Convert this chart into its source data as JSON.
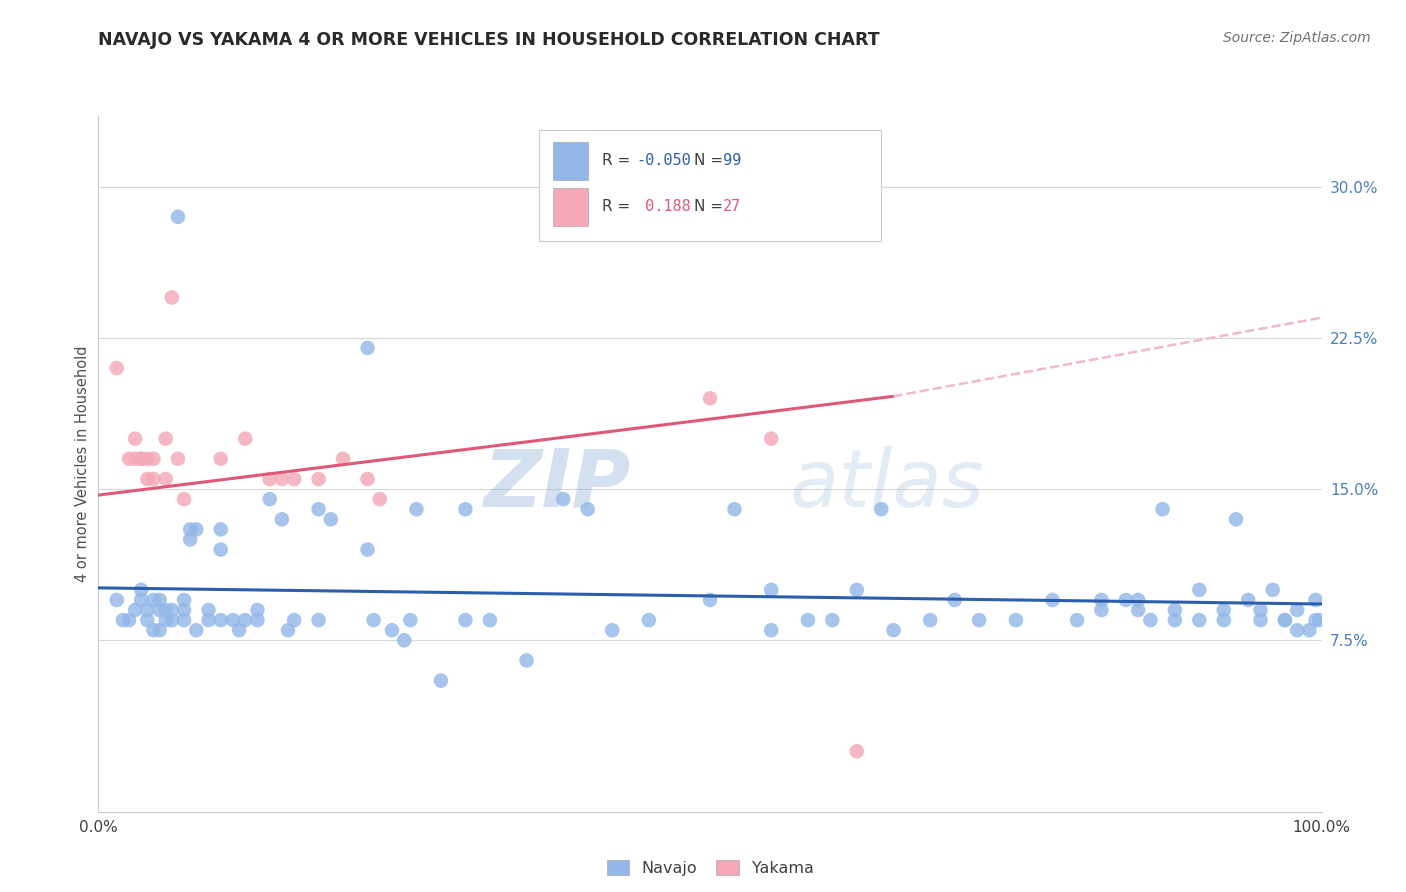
{
  "title": "NAVAJO VS YAKAMA 4 OR MORE VEHICLES IN HOUSEHOLD CORRELATION CHART",
  "source": "Source: ZipAtlas.com",
  "ylabel": "4 or more Vehicles in Household",
  "legend_navajo": "Navajo",
  "legend_yakama": "Yakama",
  "navajo_r": "-0.050",
  "navajo_n": "99",
  "yakama_r": "0.188",
  "yakama_n": "27",
  "navajo_color": "#93b8e8",
  "yakama_color": "#f4a8b8",
  "navajo_line_color": "#2b5fad",
  "yakama_line_color": "#e05878",
  "trend_dashed_color": "#f0b8c8",
  "watermark_zip": "ZIP",
  "watermark_atlas": "atlas",
  "background_color": "#ffffff",
  "grid_color": "#d8d8d8",
  "right_axis_color": "#4a7fc0",
  "title_color": "#2a2a2a",
  "source_color": "#707070",
  "ytick_labels": [
    "7.5%",
    "15.0%",
    "22.5%",
    "30.0%"
  ],
  "ytick_values": [
    7.5,
    15.0,
    22.5,
    30.0
  ],
  "xlim": [
    0.0,
    100.0
  ],
  "ylim": [
    -1.0,
    33.5
  ],
  "navajo_x": [
    1.5,
    2.0,
    2.5,
    3.0,
    3.5,
    3.5,
    4.0,
    4.0,
    4.5,
    4.5,
    5.0,
    5.0,
    5.0,
    5.5,
    5.5,
    6.0,
    6.0,
    6.5,
    7.0,
    7.0,
    7.0,
    7.5,
    7.5,
    8.0,
    8.0,
    9.0,
    9.0,
    10.0,
    10.0,
    10.0,
    11.0,
    11.5,
    12.0,
    13.0,
    13.0,
    14.0,
    15.0,
    15.5,
    16.0,
    18.0,
    18.0,
    19.0,
    22.0,
    22.0,
    22.5,
    24.0,
    25.0,
    25.5,
    26.0,
    28.0,
    30.0,
    30.0,
    32.0,
    35.0,
    38.0,
    40.0,
    42.0,
    45.0,
    50.0,
    52.0,
    55.0,
    55.0,
    58.0,
    60.0,
    62.0,
    64.0,
    65.0,
    68.0,
    70.0,
    72.0,
    75.0,
    78.0,
    80.0,
    82.0,
    82.0,
    84.0,
    85.0,
    85.0,
    86.0,
    87.0,
    88.0,
    88.0,
    90.0,
    90.0,
    92.0,
    92.0,
    93.0,
    94.0,
    95.0,
    95.0,
    96.0,
    97.0,
    97.0,
    98.0,
    98.0,
    99.0,
    99.5,
    99.5,
    99.8
  ],
  "navajo_y": [
    9.5,
    8.5,
    8.5,
    9.0,
    9.5,
    10.0,
    8.5,
    9.0,
    9.5,
    8.0,
    8.0,
    9.0,
    9.5,
    9.0,
    8.5,
    8.5,
    9.0,
    28.5,
    8.5,
    9.0,
    9.5,
    12.5,
    13.0,
    13.0,
    8.0,
    8.5,
    9.0,
    12.0,
    13.0,
    8.5,
    8.5,
    8.0,
    8.5,
    9.0,
    8.5,
    14.5,
    13.5,
    8.0,
    8.5,
    14.0,
    8.5,
    13.5,
    22.0,
    12.0,
    8.5,
    8.0,
    7.5,
    8.5,
    14.0,
    5.5,
    14.0,
    8.5,
    8.5,
    6.5,
    14.5,
    14.0,
    8.0,
    8.5,
    9.5,
    14.0,
    8.0,
    10.0,
    8.5,
    8.5,
    10.0,
    14.0,
    8.0,
    8.5,
    9.5,
    8.5,
    8.5,
    9.5,
    8.5,
    9.0,
    9.5,
    9.5,
    9.0,
    9.5,
    8.5,
    14.0,
    9.0,
    8.5,
    10.0,
    8.5,
    9.0,
    8.5,
    13.5,
    9.5,
    9.0,
    8.5,
    10.0,
    8.5,
    8.5,
    9.0,
    8.0,
    8.0,
    9.5,
    8.5,
    8.5
  ],
  "yakama_x": [
    1.5,
    2.5,
    3.0,
    3.0,
    3.5,
    3.5,
    4.0,
    4.0,
    4.5,
    4.5,
    5.5,
    5.5,
    6.0,
    6.5,
    7.0,
    10.0,
    12.0,
    14.0,
    15.0,
    16.0,
    18.0,
    20.0,
    22.0,
    23.0,
    50.0,
    55.0,
    62.0
  ],
  "yakama_y": [
    21.0,
    16.5,
    16.5,
    17.5,
    16.5,
    16.5,
    15.5,
    16.5,
    15.5,
    16.5,
    15.5,
    17.5,
    24.5,
    16.5,
    14.5,
    16.5,
    17.5,
    15.5,
    15.5,
    15.5,
    15.5,
    16.5,
    15.5,
    14.5,
    19.5,
    17.5,
    2.0
  ],
  "navajo_trend_x0": 0.0,
  "navajo_trend_y0": 10.1,
  "navajo_trend_x1": 100.0,
  "navajo_trend_y1": 9.3,
  "yakama_trend_x0": 0.0,
  "yakama_trend_y0": 14.7,
  "yakama_trend_x1": 65.0,
  "yakama_trend_y1": 19.6,
  "yakama_trend_ext_x1": 100.0,
  "yakama_trend_ext_y1": 23.5
}
